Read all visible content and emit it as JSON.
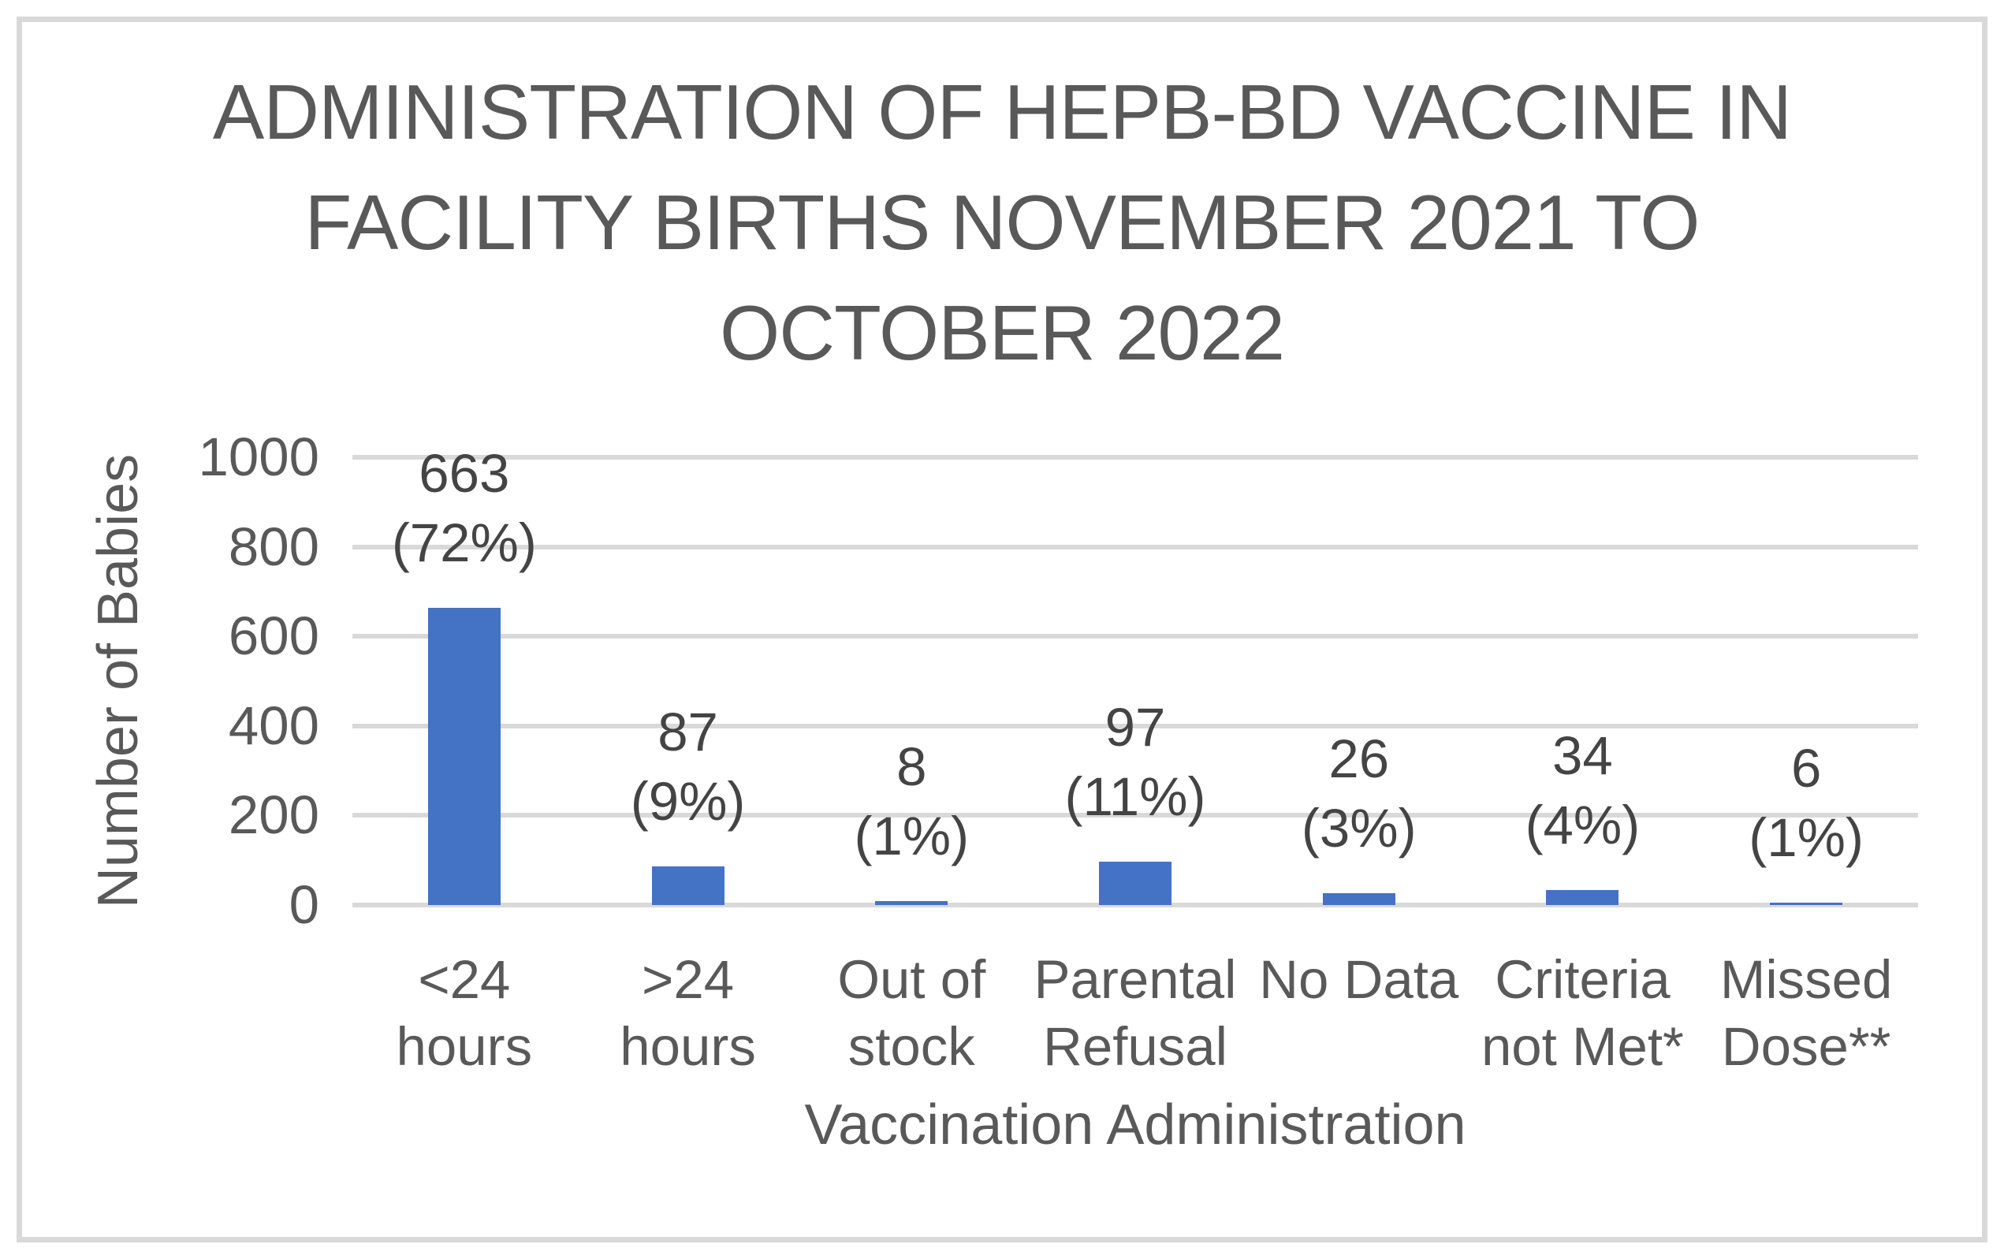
{
  "frame": {
    "border_color": "#d9d9d9",
    "background": "#ffffff"
  },
  "chart_data": {
    "type": "bar",
    "title": "ADMINISTRATION OF HEPB-BD VACCINE IN FACILITY BIRTHS NOVEMBER 2021 TO OCTOBER 2022",
    "title_lines": [
      "ADMINISTRATION OF HEPB-BD VACCINE IN",
      "FACILITY BIRTHS NOVEMBER 2021 TO",
      "OCTOBER 2022"
    ],
    "xlabel": "Vaccination Administration",
    "ylabel": "Number of Babies",
    "categories": [
      "<24 hours",
      ">24 hours",
      "Out of stock",
      "Parental Refusal",
      "No Data",
      "Criteria not Met*",
      "Missed Dose**"
    ],
    "category_label_lines": [
      [
        "<24",
        "hours"
      ],
      [
        ">24",
        "hours"
      ],
      [
        "Out of",
        "stock"
      ],
      [
        "Parental",
        "Refusal"
      ],
      [
        "No Data"
      ],
      [
        "Criteria",
        "not Met*"
      ],
      [
        "Missed",
        "Dose**"
      ]
    ],
    "values": [
      663,
      87,
      8,
      97,
      26,
      34,
      6
    ],
    "value_labels": [
      "663",
      "87",
      "8",
      "97",
      "26",
      "34",
      "6"
    ],
    "percent_labels": [
      "(72%)",
      "(9%)",
      "(1%)",
      "(11%)",
      "(3%)",
      "(4%)",
      "(1%)"
    ],
    "ylim": [
      0,
      1000
    ],
    "yticks": [
      0,
      200,
      400,
      600,
      800,
      1000
    ],
    "grid": true,
    "legend": false,
    "bar_color": "#4472C4",
    "gridline_color": "#d9d9d9",
    "text_color": "#595959"
  }
}
